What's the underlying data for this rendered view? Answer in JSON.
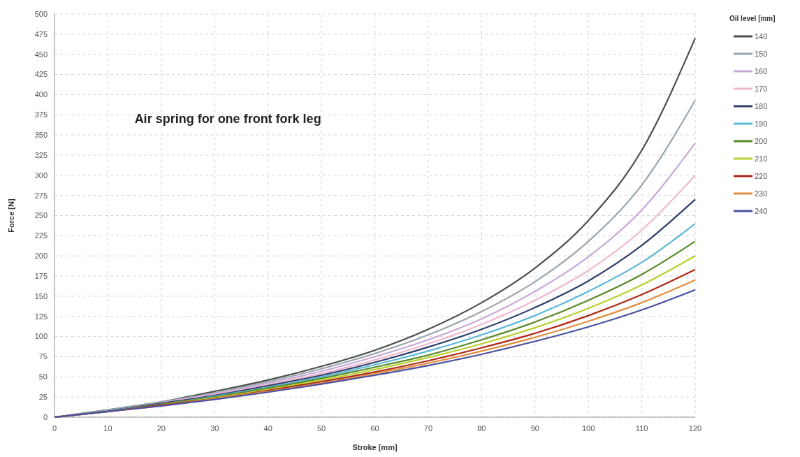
{
  "chart_data": {
    "type": "line",
    "title": "Air spring for one front fork leg",
    "xlabel": "Stroke [mm]",
    "ylabel": "Force [N]",
    "legend_title": "Oil level [mm]",
    "legend": "right",
    "grid": true,
    "marker": "none",
    "line_style": "solid",
    "x": [
      0,
      10,
      20,
      30,
      40,
      50,
      60,
      70,
      80,
      90,
      100,
      110,
      120
    ],
    "xlim": [
      0,
      120
    ],
    "xticks": [
      0,
      10,
      20,
      30,
      40,
      50,
      60,
      70,
      80,
      90,
      100,
      110,
      120
    ],
    "ylim": [
      0,
      500
    ],
    "yticks": [
      0,
      25,
      50,
      75,
      100,
      125,
      150,
      175,
      200,
      225,
      250,
      275,
      300,
      325,
      350,
      375,
      400,
      425,
      450,
      475,
      500
    ],
    "series": [
      {
        "name": "140",
        "color": "#4a504a",
        "values": [
          0,
          9,
          19,
          32,
          46,
          63,
          83,
          109,
          142,
          185,
          244,
          331,
          470
        ]
      },
      {
        "name": "150",
        "color": "#9aa6ae",
        "values": [
          0,
          9,
          19,
          30,
          44,
          60,
          79,
          102,
          131,
          168,
          218,
          288,
          393
        ]
      },
      {
        "name": "160",
        "color": "#c9a8d8",
        "values": [
          0,
          8,
          18,
          29,
          42,
          57,
          75,
          96,
          122,
          156,
          199,
          257,
          340
        ]
      },
      {
        "name": "170",
        "color": "#f0b8d0",
        "values": [
          0,
          8,
          17,
          28,
          40,
          54,
          71,
          91,
          115,
          145,
          182,
          232,
          300
        ]
      },
      {
        "name": "180",
        "color": "#2f3f6a",
        "values": [
          0,
          8,
          17,
          27,
          39,
          52,
          68,
          87,
          109,
          136,
          169,
          213,
          270
        ]
      },
      {
        "name": "190",
        "color": "#5ab8d8",
        "values": [
          0,
          8,
          16,
          26,
          37,
          50,
          65,
          82,
          102,
          126,
          156,
          192,
          240
        ]
      },
      {
        "name": "200",
        "color": "#5a8a2a",
        "values": [
          0,
          7,
          16,
          25,
          36,
          48,
          62,
          77,
          96,
          118,
          145,
          177,
          218
        ]
      },
      {
        "name": "210",
        "color": "#b8d030",
        "values": [
          null,
          null,
          15,
          24,
          34,
          46,
          59,
          74,
          91,
          111,
          135,
          164,
          200
        ]
      },
      {
        "name": "220",
        "color": "#b02818",
        "values": [
          0,
          7,
          15,
          23,
          33,
          44,
          56,
          70,
          86,
          104,
          126,
          152,
          183
        ]
      },
      {
        "name": "230",
        "color": "#e09040",
        "values": [
          0,
          7,
          14,
          23,
          32,
          42,
          54,
          67,
          82,
          99,
          119,
          142,
          170
        ]
      },
      {
        "name": "240",
        "color": "#4a50a0",
        "values": [
          0,
          7,
          14,
          22,
          31,
          41,
          52,
          64,
          78,
          94,
          112,
          133,
          158
        ]
      }
    ]
  }
}
